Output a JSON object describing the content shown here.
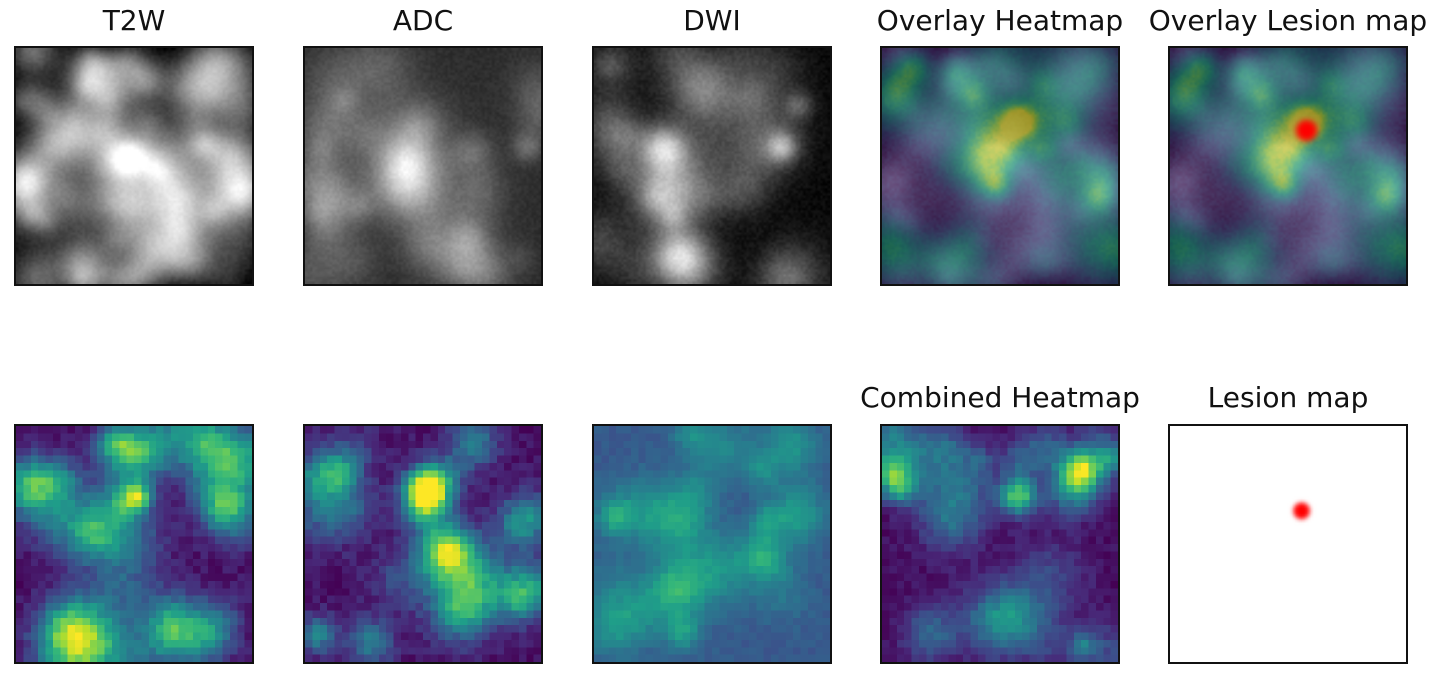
{
  "figure": {
    "row1": [
      {
        "title": "T2W",
        "kind": "gray-fine"
      },
      {
        "title": "ADC",
        "kind": "gray-blurry"
      },
      {
        "title": "DWI",
        "kind": "gray-dwi"
      },
      {
        "title": "Overlay Heatmap",
        "kind": "overlay-heatmap"
      },
      {
        "title": "Overlay Lesion map",
        "kind": "overlay-lesion"
      }
    ],
    "row2": [
      {
        "title": "",
        "kind": "viridis-t2w"
      },
      {
        "title": "",
        "kind": "viridis-adc"
      },
      {
        "title": "",
        "kind": "viridis-dwi"
      },
      {
        "title": "Combined Heatmap",
        "kind": "viridis-combined"
      },
      {
        "title": "Lesion map",
        "kind": "lesion"
      }
    ],
    "colormap": "viridis",
    "lesion_color": "#ff0000"
  }
}
